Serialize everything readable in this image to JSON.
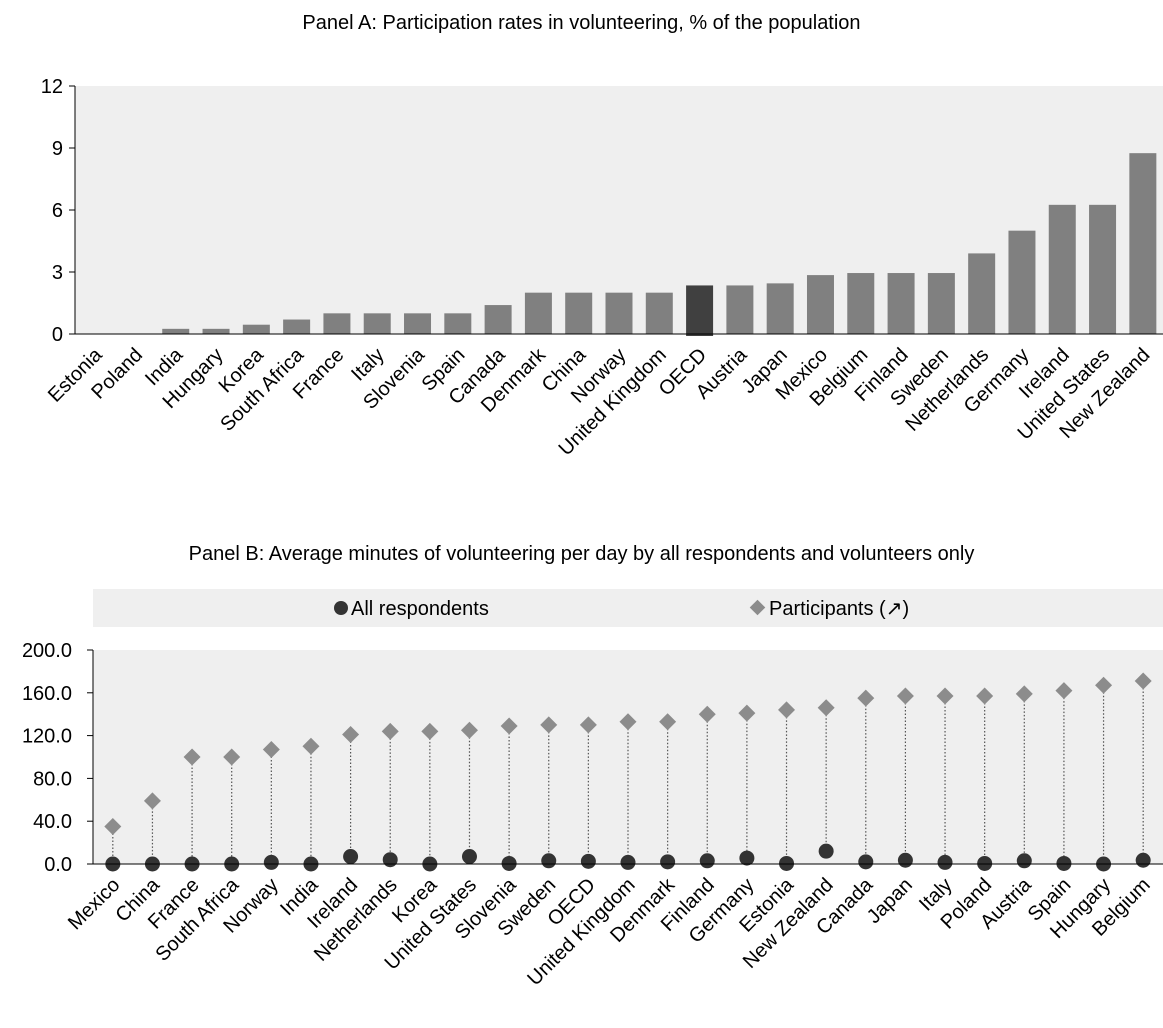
{
  "chart_data": [
    {
      "type": "bar",
      "title": "Panel A: Participation rates in volunteering, % of the population",
      "categories": [
        "Estonia",
        "Poland",
        "India",
        "Hungary",
        "Korea",
        "South Africa",
        "France",
        "Italy",
        "Slovenia",
        "Spain",
        "Canada",
        "Denmark",
        "China",
        "Norway",
        "United Kingdom",
        "OECD",
        "Austria",
        "Japan",
        "Mexico",
        "Belgium",
        "Finland",
        "Sweden",
        "Netherlands",
        "Germany",
        "Ireland",
        "United States",
        "New Zealand"
      ],
      "values": [
        0,
        0,
        0.25,
        0.25,
        0.45,
        0.7,
        1.0,
        1.0,
        1.0,
        1.0,
        1.4,
        2.0,
        2.0,
        2.0,
        2.0,
        2.35,
        2.35,
        2.45,
        2.85,
        2.95,
        2.95,
        2.95,
        3.9,
        5.0,
        6.25,
        6.25,
        8.75
      ],
      "highlight": "OECD",
      "ylim": [
        0,
        12
      ],
      "yticks": [
        "0",
        "3",
        "6",
        "9",
        "12"
      ],
      "bar_color": "#808080",
      "highlight_color": "#404040",
      "grid": false,
      "background": "#efefef"
    },
    {
      "type": "scatter",
      "title": "Panel B: Average minutes of volunteering per day by all respondents and volunteers only",
      "categories": [
        "Mexico",
        "China",
        "France",
        "South Africa",
        "Norway",
        "India",
        "Ireland",
        "Netherlands",
        "Korea",
        "United States",
        "Slovenia",
        "Sweden",
        "OECD",
        "United Kingdom",
        "Denmark",
        "Finland",
        "Germany",
        "Estonia",
        "New Zealand",
        "Canada",
        "Japan",
        "Italy",
        "Poland",
        "Austria",
        "Spain",
        "Hungary",
        "Belgium"
      ],
      "series": [
        {
          "name": "All respondents",
          "marker": "circle",
          "color": "#333333",
          "values": [
            0,
            0,
            0,
            0,
            1.5,
            0,
            7,
            4,
            0,
            7,
            0.5,
            3,
            2.5,
            1.5,
            2,
            3,
            5.5,
            0.5,
            12,
            2,
            3.5,
            1.5,
            0.5,
            3,
            0.5,
            0,
            3.5
          ]
        },
        {
          "name": "Participants (↗)",
          "marker": "diamond",
          "color": "#8c8c8c",
          "values": [
            35,
            59,
            100,
            100,
            107,
            110,
            121,
            124,
            124,
            125,
            129,
            130,
            130,
            133,
            133,
            140,
            141,
            144,
            146,
            155,
            157,
            157,
            157,
            159,
            162,
            167,
            171
          ]
        }
      ],
      "ylim": [
        0,
        200
      ],
      "yticks": [
        "0.0",
        "40.0",
        "80.0",
        "120.0",
        "160.0",
        "200.0"
      ],
      "legend": "top",
      "connectors": "dotted",
      "grid": false,
      "background": "#efefef"
    }
  ]
}
